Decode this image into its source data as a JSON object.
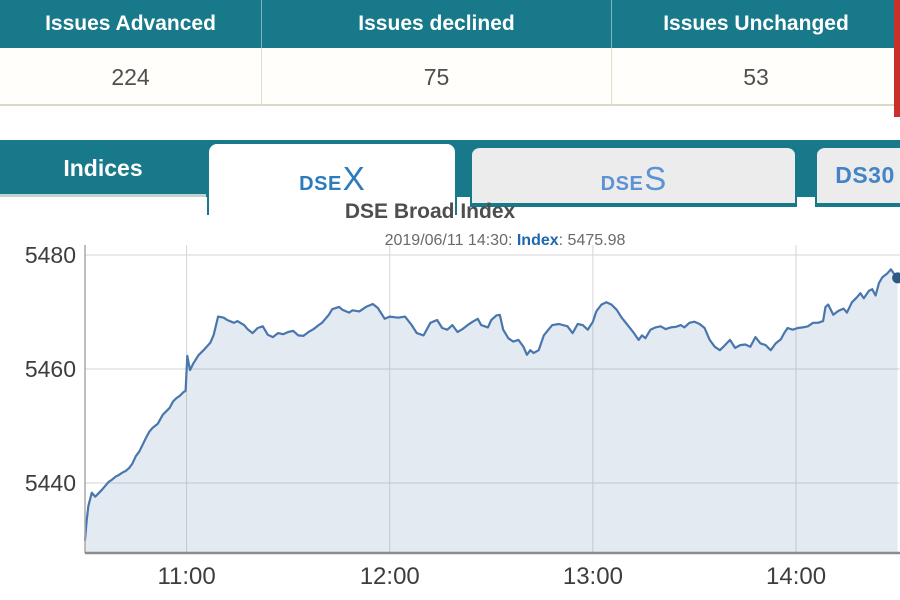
{
  "summary_table": {
    "columns": [
      {
        "label": "Issues Advanced",
        "value": "224"
      },
      {
        "label": "Issues declined",
        "value": "75"
      },
      {
        "label": "Issues Unchanged",
        "value": "53"
      }
    ]
  },
  "tabs": {
    "bar_label": "Indices",
    "items": [
      {
        "prefix": "DSE",
        "suffix": "X",
        "active": true
      },
      {
        "prefix": "DSE",
        "suffix": "S",
        "active": false
      },
      {
        "prefix": "DS30",
        "suffix": "",
        "active": false
      }
    ]
  },
  "chart": {
    "title": "DSE Broad Index",
    "subtitle_prefix": "2019/06/11 14:30: ",
    "subtitle_label": "Index",
    "subtitle_value": ": 5475.98"
  },
  "colors": {
    "teal": "#17798a",
    "red_fragment": "#c9302c",
    "line": "#4976ad",
    "marker": "#2f5884",
    "fill": "rgba(69,114,167,0.15)",
    "grid": "#d6d6d6",
    "axis": "#8c8c8c",
    "tick_text": "#3d3d3d"
  },
  "chart_data": {
    "type": "area",
    "title": "DSE Broad Index",
    "subtitle": "2019/06/11 14:30: Index: 5475.98",
    "x_unit": "minutes since 10:30",
    "xlim": [
      0,
      240.5
    ],
    "ylim": [
      5427,
      5482
    ],
    "grid": true,
    "legend": "none",
    "xticks": [
      {
        "t": 30,
        "label": "11:00"
      },
      {
        "t": 90,
        "label": "12:00"
      },
      {
        "t": 150,
        "label": "13:00"
      },
      {
        "t": 210,
        "label": "14:00"
      }
    ],
    "yticks": [
      {
        "v": 5480,
        "label": "5480"
      },
      {
        "v": 5460,
        "label": "5460"
      },
      {
        "v": 5440,
        "label": "5440"
      }
    ],
    "last_point": {
      "time": "14:30",
      "value": 5475.98
    },
    "points": [
      [
        0,
        5430
      ],
      [
        0.5,
        5433.5
      ],
      [
        1,
        5436
      ],
      [
        2,
        5438.3
      ],
      [
        3,
        5437.6
      ],
      [
        4,
        5438.2
      ],
      [
        5,
        5438.8
      ],
      [
        6,
        5439.5
      ],
      [
        7,
        5440.2
      ],
      [
        8,
        5440.6
      ],
      [
        9,
        5441.1
      ],
      [
        10,
        5441.4
      ],
      [
        11,
        5441.8
      ],
      [
        12,
        5442.1
      ],
      [
        13,
        5442.6
      ],
      [
        14,
        5443.4
      ],
      [
        15,
        5444.7
      ],
      [
        16,
        5445.5
      ],
      [
        17,
        5446.7
      ],
      [
        18,
        5447.9
      ],
      [
        19,
        5449
      ],
      [
        20,
        5449.7
      ],
      [
        21.5,
        5450.4
      ],
      [
        23,
        5452
      ],
      [
        25,
        5453.2
      ],
      [
        26,
        5454.3
      ],
      [
        27,
        5454.9
      ],
      [
        28,
        5455.3
      ],
      [
        29,
        5455.9
      ],
      [
        29.7,
        5456.2
      ],
      [
        30.2,
        5462.3
      ],
      [
        31,
        5459.8
      ],
      [
        32,
        5461
      ],
      [
        33.5,
        5462.4
      ],
      [
        35,
        5463.3
      ],
      [
        37,
        5464.6
      ],
      [
        38,
        5466
      ],
      [
        39.3,
        5469.2
      ],
      [
        41,
        5469
      ],
      [
        42,
        5468.6
      ],
      [
        44,
        5468.1
      ],
      [
        45,
        5468.4
      ],
      [
        47,
        5467.7
      ],
      [
        48,
        5467
      ],
      [
        49.5,
        5466.3
      ],
      [
        51,
        5467.2
      ],
      [
        52.5,
        5467.5
      ],
      [
        54,
        5466
      ],
      [
        55.5,
        5465.6
      ],
      [
        57,
        5466.3
      ],
      [
        58.5,
        5466.1
      ],
      [
        60,
        5466.5
      ],
      [
        61.5,
        5466.7
      ],
      [
        63,
        5465.9
      ],
      [
        64.5,
        5465.8
      ],
      [
        66,
        5466.5
      ],
      [
        67.5,
        5467
      ],
      [
        69,
        5467.7
      ],
      [
        70,
        5468.1
      ],
      [
        72,
        5469.5
      ],
      [
        73,
        5470.5
      ],
      [
        75,
        5470.9
      ],
      [
        76,
        5470.4
      ],
      [
        78,
        5469.9
      ],
      [
        79,
        5470.3
      ],
      [
        81,
        5470.1
      ],
      [
        83,
        5470.9
      ],
      [
        85,
        5471.4
      ],
      [
        86.5,
        5470.7
      ],
      [
        88.5,
        5468.8
      ],
      [
        90,
        5469.2
      ],
      [
        92.5,
        5469
      ],
      [
        94.5,
        5469.2
      ],
      [
        96.5,
        5467.7
      ],
      [
        98,
        5466.3
      ],
      [
        100,
        5465.9
      ],
      [
        102,
        5468.1
      ],
      [
        104,
        5468.6
      ],
      [
        105.5,
        5467.2
      ],
      [
        107,
        5466.9
      ],
      [
        108.5,
        5467.7
      ],
      [
        110,
        5466.5
      ],
      [
        111.5,
        5467
      ],
      [
        113,
        5467.7
      ],
      [
        114.5,
        5468.3
      ],
      [
        116,
        5468.8
      ],
      [
        117,
        5467.7
      ],
      [
        119,
        5467.3
      ],
      [
        120,
        5468.6
      ],
      [
        121.5,
        5469.4
      ],
      [
        122.5,
        5469.5
      ],
      [
        123.5,
        5466.9
      ],
      [
        125,
        5465.4
      ],
      [
        126.5,
        5464.8
      ],
      [
        128,
        5465.1
      ],
      [
        129.5,
        5463.9
      ],
      [
        130.5,
        5462.5
      ],
      [
        131.5,
        5463.3
      ],
      [
        132.5,
        5462.8
      ],
      [
        134,
        5463.3
      ],
      [
        135.5,
        5465.9
      ],
      [
        137,
        5467
      ],
      [
        138,
        5467.7
      ],
      [
        140,
        5467.9
      ],
      [
        142.5,
        5467.5
      ],
      [
        144,
        5466.3
      ],
      [
        145.5,
        5467.9
      ],
      [
        147,
        5467.7
      ],
      [
        148.5,
        5466.9
      ],
      [
        150,
        5468.3
      ],
      [
        151,
        5470.1
      ],
      [
        152.5,
        5471.3
      ],
      [
        154,
        5471.7
      ],
      [
        155.5,
        5471.3
      ],
      [
        157,
        5470.4
      ],
      [
        158.5,
        5469
      ],
      [
        160,
        5467.9
      ],
      [
        162,
        5466.4
      ],
      [
        163.5,
        5465.1
      ],
      [
        164.5,
        5465.9
      ],
      [
        165.5,
        5465.4
      ],
      [
        167,
        5466.9
      ],
      [
        168.5,
        5467.3
      ],
      [
        170,
        5467.5
      ],
      [
        171.5,
        5467
      ],
      [
        173,
        5467.3
      ],
      [
        174.5,
        5467.4
      ],
      [
        176,
        5467.7
      ],
      [
        177,
        5467.3
      ],
      [
        178.5,
        5468.1
      ],
      [
        180,
        5468.3
      ],
      [
        181.5,
        5467.9
      ],
      [
        183,
        5467.2
      ],
      [
        184.5,
        5465.1
      ],
      [
        186,
        5463.9
      ],
      [
        187.5,
        5463.3
      ],
      [
        189,
        5464.2
      ],
      [
        190.5,
        5465.1
      ],
      [
        192,
        5463.7
      ],
      [
        193.5,
        5464.2
      ],
      [
        195,
        5464.3
      ],
      [
        196.5,
        5463.9
      ],
      [
        198,
        5465.6
      ],
      [
        199.5,
        5464.5
      ],
      [
        201,
        5464.2
      ],
      [
        202.5,
        5463.3
      ],
      [
        204,
        5464.5
      ],
      [
        205.5,
        5465.2
      ],
      [
        206.5,
        5466.3
      ],
      [
        207.5,
        5467.2
      ],
      [
        209,
        5466.9
      ],
      [
        210.5,
        5467.2
      ],
      [
        212,
        5467.3
      ],
      [
        213.5,
        5467.5
      ],
      [
        215,
        5468.1
      ],
      [
        216.5,
        5468.1
      ],
      [
        218,
        5468.4
      ],
      [
        218.7,
        5470.9
      ],
      [
        219.5,
        5471.3
      ],
      [
        221,
        5469.5
      ],
      [
        222.5,
        5470.2
      ],
      [
        224,
        5470.6
      ],
      [
        225,
        5469.9
      ],
      [
        226.5,
        5471.7
      ],
      [
        228,
        5472.6
      ],
      [
        229,
        5473.3
      ],
      [
        230,
        5472.4
      ],
      [
        231.5,
        5473.7
      ],
      [
        232.5,
        5474
      ],
      [
        233.5,
        5472.9
      ],
      [
        234.5,
        5475.1
      ],
      [
        235.5,
        5476.1
      ],
      [
        237,
        5476.8
      ],
      [
        238,
        5477.5
      ],
      [
        238.8,
        5476.8
      ],
      [
        240,
        5475.98
      ]
    ]
  }
}
